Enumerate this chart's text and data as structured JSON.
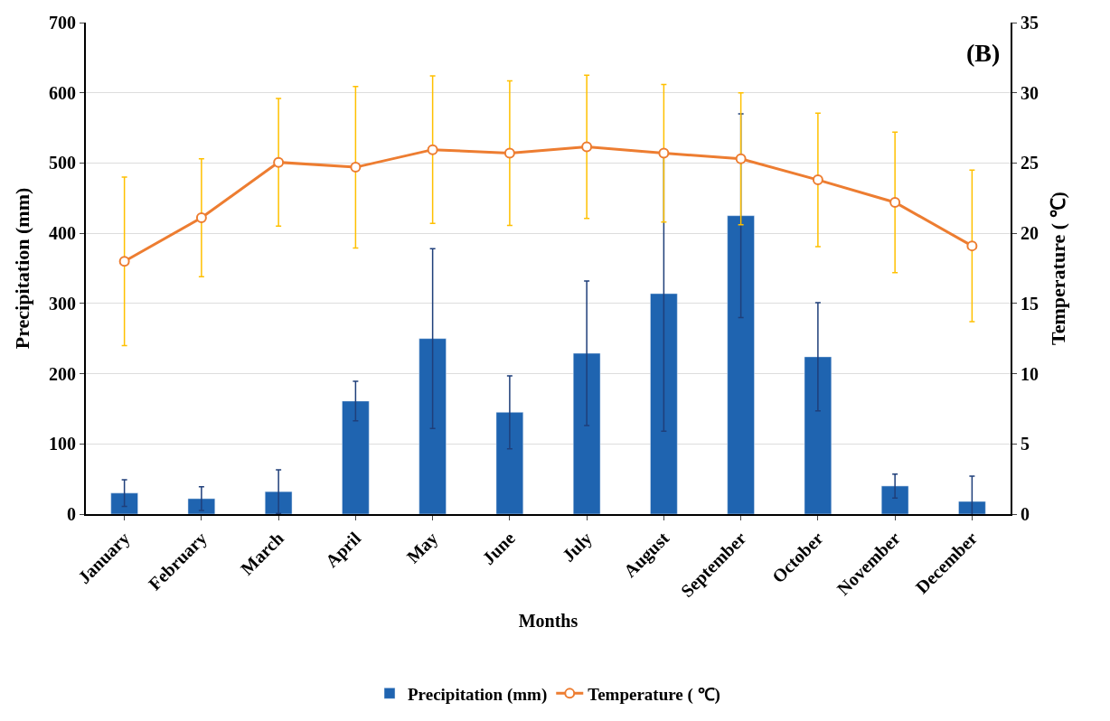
{
  "chart_data": {
    "type": "bar",
    "xlabel": "Months",
    "ylabel": "Precipitation (mm)",
    "y2label": "Temperature ( ℃)",
    "categories": [
      "January",
      "February",
      "March",
      "April",
      "May",
      "June",
      "July",
      "August",
      "September",
      "October",
      "November",
      "December"
    ],
    "series": [
      {
        "name": "Precipitation (mm)",
        "color": "#1f64b0",
        "values": [
          30,
          22,
          32,
          161,
          250,
          145,
          229,
          314,
          425,
          224,
          40,
          18
        ],
        "errors": [
          19,
          17,
          31,
          28,
          128,
          52,
          103,
          196,
          145,
          77,
          17,
          36
        ]
      },
      {
        "name": "Temperature ( ℃)",
        "type": "line",
        "axis": "y2",
        "color": "#ed7d31",
        "values": [
          18.0,
          21.1,
          25.05,
          24.7,
          25.95,
          25.7,
          26.15,
          25.7,
          25.3,
          23.8,
          22.2,
          19.1
        ],
        "errors": [
          6.0,
          4.2,
          4.55,
          5.75,
          5.25,
          5.15,
          5.1,
          4.9,
          4.7,
          4.75,
          5.0,
          5.4
        ]
      }
    ],
    "ylim": [
      0,
      700
    ],
    "yticks": [
      0,
      100,
      200,
      300,
      400,
      500,
      600,
      700
    ],
    "y2lim": [
      0,
      35
    ],
    "y2ticks": [
      0,
      5,
      10,
      15,
      20,
      25,
      30,
      35
    ],
    "annotations": [
      "(B)"
    ],
    "grid": "y",
    "legend": "bottom",
    "marker": "circle",
    "line_style": "solid"
  }
}
